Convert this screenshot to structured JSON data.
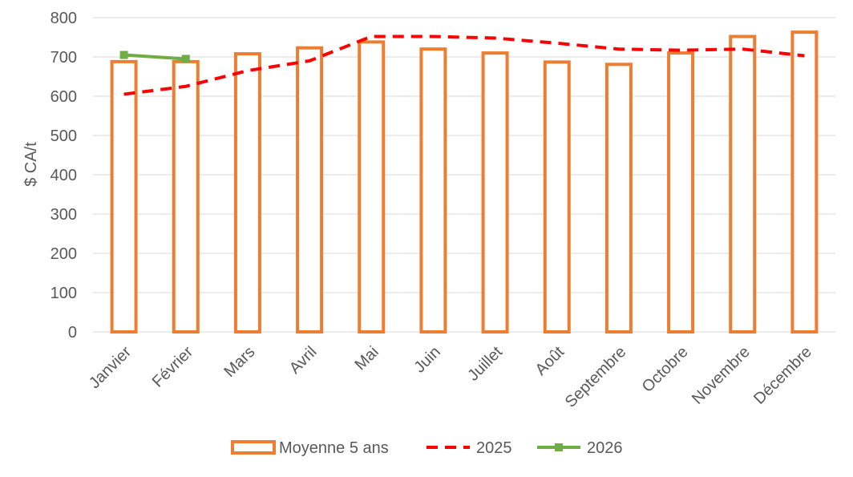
{
  "chart_data": {
    "type": "bar",
    "title": "",
    "xlabel": "",
    "ylabel": "$ CA/t",
    "ylim": [
      0,
      800
    ],
    "yticks": [
      0,
      100,
      200,
      300,
      400,
      500,
      600,
      700,
      800
    ],
    "grid": true,
    "legend_position": "bottom",
    "categories": [
      "Janvier",
      "Février",
      "Mars",
      "Avril",
      "Mai",
      "Juin",
      "Juillet",
      "Août",
      "Septembre",
      "Octobre",
      "Novembre",
      "Décembre"
    ],
    "series": [
      {
        "name": "Moyenne 5 ans",
        "type": "bar",
        "color": "#ED7D31",
        "values": [
          688,
          688,
          708,
          723,
          738,
          720,
          710,
          687,
          681,
          710,
          752,
          763
        ]
      },
      {
        "name": "2025",
        "type": "line",
        "style": "dashed",
        "color": "#FF0000",
        "values": [
          605,
          625,
          665,
          690,
          752,
          752,
          748,
          735,
          720,
          717,
          720,
          703
        ]
      },
      {
        "name": "2026",
        "type": "line",
        "style": "solid-square-markers",
        "color": "#70AD47",
        "values": [
          705,
          695,
          null,
          null,
          null,
          null,
          null,
          null,
          null,
          null,
          null,
          null
        ]
      }
    ]
  }
}
